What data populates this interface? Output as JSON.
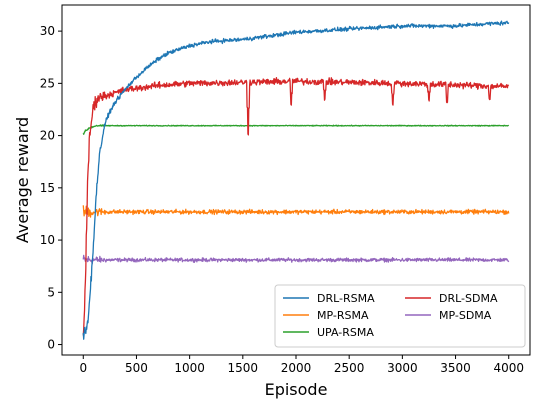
{
  "chart_data": {
    "type": "line",
    "title": "",
    "xlabel": "Episode",
    "ylabel": "Average reward",
    "xlim": [
      -200,
      4200
    ],
    "ylim": [
      -1,
      32.5
    ],
    "xticks": [
      0,
      500,
      1000,
      1500,
      2000,
      2500,
      3000,
      3500,
      4000
    ],
    "yticks": [
      0,
      5,
      10,
      15,
      20,
      25,
      30
    ],
    "grid": false,
    "legend": {
      "location": "lower-right",
      "columns": 2
    },
    "series": [
      {
        "name": "DRL-RSMA",
        "color": "#1f77b4",
        "noise": 0.28,
        "points": [
          [
            0,
            0.8
          ],
          [
            40,
            2
          ],
          [
            80,
            7
          ],
          [
            120,
            14
          ],
          [
            150,
            18
          ],
          [
            200,
            21
          ],
          [
            250,
            22.3
          ],
          [
            300,
            23.2
          ],
          [
            400,
            24.5
          ],
          [
            500,
            25.6
          ],
          [
            600,
            26.5
          ],
          [
            700,
            27.3
          ],
          [
            800,
            27.9
          ],
          [
            1000,
            28.6
          ],
          [
            1200,
            29.0
          ],
          [
            1500,
            29.2
          ],
          [
            1800,
            29.6
          ],
          [
            2000,
            29.9
          ],
          [
            2500,
            30.2
          ],
          [
            3000,
            30.5
          ],
          [
            3500,
            30.5
          ],
          [
            3800,
            30.7
          ],
          [
            4000,
            30.8
          ]
        ]
      },
      {
        "name": "MP-RSMA",
        "color": "#ff7f0e",
        "noise": 0.3,
        "points": [
          [
            0,
            12.7
          ],
          [
            4000,
            12.7
          ]
        ]
      },
      {
        "name": "UPA-RSMA",
        "color": "#2ca02c",
        "noise": 0.06,
        "points": [
          [
            0,
            20.2
          ],
          [
            50,
            20.7
          ],
          [
            120,
            20.95
          ],
          [
            4000,
            20.95
          ]
        ]
      },
      {
        "name": "DRL-SDMA",
        "color": "#d62728",
        "noise": 0.45,
        "points": [
          [
            0,
            0.8
          ],
          [
            20,
            6
          ],
          [
            40,
            15
          ],
          [
            60,
            20
          ],
          [
            90,
            22.5
          ],
          [
            130,
            23.6
          ],
          [
            200,
            23.8
          ],
          [
            400,
            24.4
          ],
          [
            700,
            24.8
          ],
          [
            1000,
            25.0
          ],
          [
            1500,
            25.1
          ],
          [
            2000,
            25.2
          ],
          [
            3000,
            25.0
          ],
          [
            4000,
            24.7
          ]
        ],
        "dips": [
          [
            1550,
            20.2
          ],
          [
            1955,
            23.0
          ],
          [
            2270,
            23.5
          ],
          [
            2910,
            23.0
          ],
          [
            3250,
            23.4
          ],
          [
            3420,
            23.2
          ],
          [
            3820,
            23.5
          ]
        ]
      },
      {
        "name": "MP-SDMA",
        "color": "#9467bd",
        "noise": 0.25,
        "points": [
          [
            0,
            8.1
          ],
          [
            4000,
            8.1
          ]
        ]
      }
    ]
  }
}
